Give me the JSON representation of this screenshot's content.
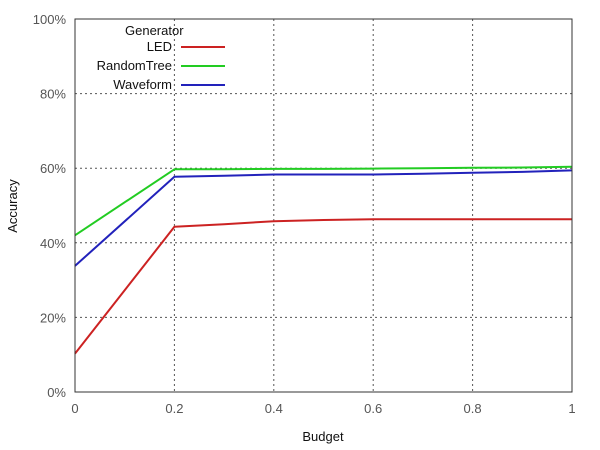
{
  "chart_data": {
    "type": "line",
    "xlabel": "Budget",
    "ylabel": "Accuracy",
    "xlim": [
      0,
      1
    ],
    "ylim": [
      0,
      100
    ],
    "x_ticks": [
      {
        "value": 0,
        "label": "0"
      },
      {
        "value": 0.2,
        "label": "0.2"
      },
      {
        "value": 0.4,
        "label": "0.4"
      },
      {
        "value": 0.6,
        "label": "0.6"
      },
      {
        "value": 0.8,
        "label": "0.8"
      },
      {
        "value": 1,
        "label": "1"
      }
    ],
    "y_ticks": [
      {
        "value": 0,
        "label": "0%"
      },
      {
        "value": 20,
        "label": "20%"
      },
      {
        "value": 40,
        "label": "40%"
      },
      {
        "value": 60,
        "label": "60%"
      },
      {
        "value": 80,
        "label": "80%"
      },
      {
        "value": 100,
        "label": "100%"
      }
    ],
    "grid": true,
    "legend": {
      "title": "Generator",
      "placement": "top-left"
    },
    "series": [
      {
        "name": "LED",
        "color": "#cc2222",
        "points": [
          [
            0,
            10.3
          ],
          [
            0.2,
            44.3
          ],
          [
            0.3,
            45.0
          ],
          [
            0.4,
            45.8
          ],
          [
            0.5,
            46.1
          ],
          [
            0.6,
            46.3
          ],
          [
            0.7,
            46.3
          ],
          [
            0.8,
            46.3
          ],
          [
            0.9,
            46.3
          ],
          [
            1.0,
            46.3
          ]
        ]
      },
      {
        "name": "RandomTree",
        "color": "#22cc22",
        "points": [
          [
            0,
            42.0
          ],
          [
            0.2,
            59.7
          ],
          [
            0.3,
            59.7
          ],
          [
            0.4,
            59.8
          ],
          [
            0.5,
            59.8
          ],
          [
            0.6,
            59.9
          ],
          [
            0.7,
            60.0
          ],
          [
            0.8,
            60.1
          ],
          [
            0.9,
            60.2
          ],
          [
            1.0,
            60.4
          ]
        ]
      },
      {
        "name": "Waveform",
        "color": "#2222bb",
        "points": [
          [
            0,
            33.8
          ],
          [
            0.2,
            57.7
          ],
          [
            0.3,
            58.0
          ],
          [
            0.4,
            58.3
          ],
          [
            0.5,
            58.3
          ],
          [
            0.6,
            58.3
          ],
          [
            0.7,
            58.5
          ],
          [
            0.8,
            58.8
          ],
          [
            0.9,
            59.0
          ],
          [
            1.0,
            59.4
          ]
        ]
      }
    ]
  }
}
